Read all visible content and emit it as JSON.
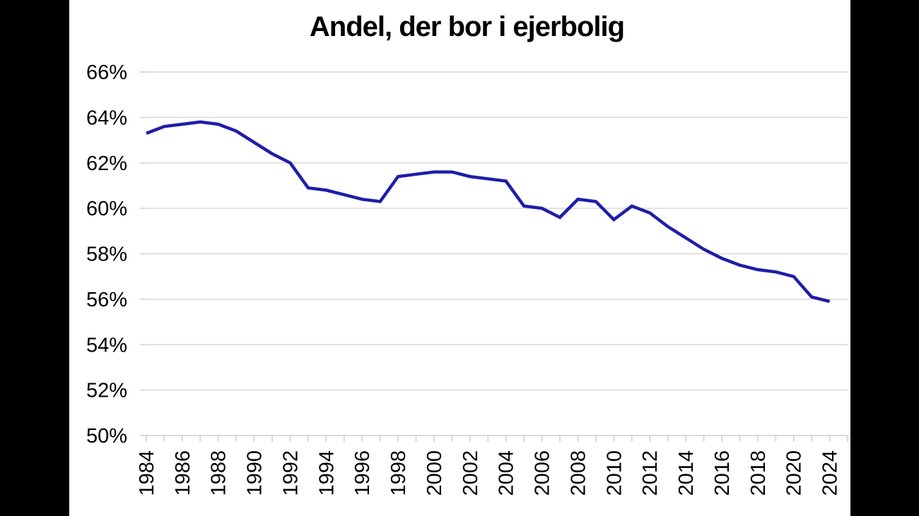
{
  "chart_data": {
    "type": "line",
    "title": "Andel, der bor i ejerbolig",
    "categories": [
      "1984",
      "1985",
      "1986",
      "1987",
      "1988",
      "1989",
      "1990",
      "1991",
      "1992",
      "1993",
      "1994",
      "1995",
      "1996",
      "1997",
      "1998",
      "1999",
      "2000",
      "2001",
      "2002",
      "2003",
      "2004",
      "2005",
      "2006",
      "2007",
      "2008",
      "2009",
      "2010",
      "2011",
      "2012",
      "2013",
      "2014",
      "2015",
      "2016",
      "2017",
      "2018",
      "2019",
      "2020",
      "2022",
      "2024"
    ],
    "values": [
      63.3,
      63.6,
      63.7,
      63.8,
      63.7,
      63.4,
      62.9,
      62.4,
      62.0,
      60.9,
      60.8,
      60.6,
      60.4,
      60.3,
      61.4,
      61.5,
      61.6,
      61.6,
      61.4,
      61.3,
      61.2,
      60.1,
      60.0,
      59.6,
      60.4,
      60.3,
      59.5,
      60.1,
      59.8,
      59.2,
      58.7,
      58.2,
      57.8,
      57.5,
      57.3,
      57.2,
      57.0,
      56.1,
      55.9
    ],
    "unit": "%",
    "ylim": [
      50,
      66
    ],
    "ytick_step": 2,
    "y_tick_labels": [
      "50%",
      "52%",
      "54%",
      "56%",
      "58%",
      "60%",
      "62%",
      "64%",
      "66%"
    ],
    "x_label_every": 2,
    "x_tick_labels_visible": [
      "1984",
      "1986",
      "1988",
      "1990",
      "1992",
      "1994",
      "1996",
      "1998",
      "2000",
      "2002",
      "2004",
      "2006",
      "2008",
      "2010",
      "2012",
      "2014",
      "2016",
      "2018",
      "2020",
      "2024"
    ],
    "x_label_rotation": -90,
    "grid": "horizontal",
    "legend": "none",
    "colors": {
      "line": "#1e1ea8",
      "gridline": "#d9d9d9",
      "axis": "#d9d9d9",
      "text": "#000000",
      "panel_background": "#ffffff",
      "outer_background": "#000000"
    }
  }
}
